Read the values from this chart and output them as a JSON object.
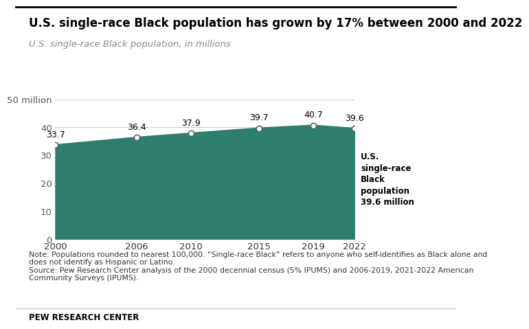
{
  "title": "U.S. single-race Black population has grown by 17% between 2000 and 2022",
  "subtitle": "U.S. single-race Black population, in millions",
  "years": [
    2000,
    2006,
    2010,
    2015,
    2019,
    2022
  ],
  "values": [
    33.7,
    36.4,
    37.9,
    39.7,
    40.7,
    39.6
  ],
  "area_color": "#2e7e6e",
  "line_color": "#2e7e6e",
  "marker_color": "#ffffff",
  "marker_edge_color": "#636363",
  "ylim": [
    0,
    50
  ],
  "yticks": [
    0,
    10,
    20,
    30,
    40,
    50
  ],
  "ytick_labels": [
    "0",
    "10",
    "20",
    "30",
    "40",
    "50 million"
  ],
  "xticks": [
    2000,
    2006,
    2010,
    2015,
    2019,
    2022
  ],
  "note_text": "Note: Populations rounded to nearest 100,000. “Single-race Black” refers to anyone who self-identifies as Black alone and\ndoes not identify as Hispanic or Latino.\nSource: Pew Research Center analysis of the 2000 decennial census (5% IPUMS) and 2006-2019, 2021-2022 American\nCommunity Surveys (IPUMS).",
  "footer_text": "PEW RESEARCH CENTER",
  "bg_color": "#ffffff",
  "grid_color": "#cccccc",
  "title_fontsize": 12,
  "subtitle_fontsize": 9.5,
  "tick_fontsize": 9.5,
  "annotation_fontsize": 9,
  "note_fontsize": 7.8,
  "footer_fontsize": 8.5
}
